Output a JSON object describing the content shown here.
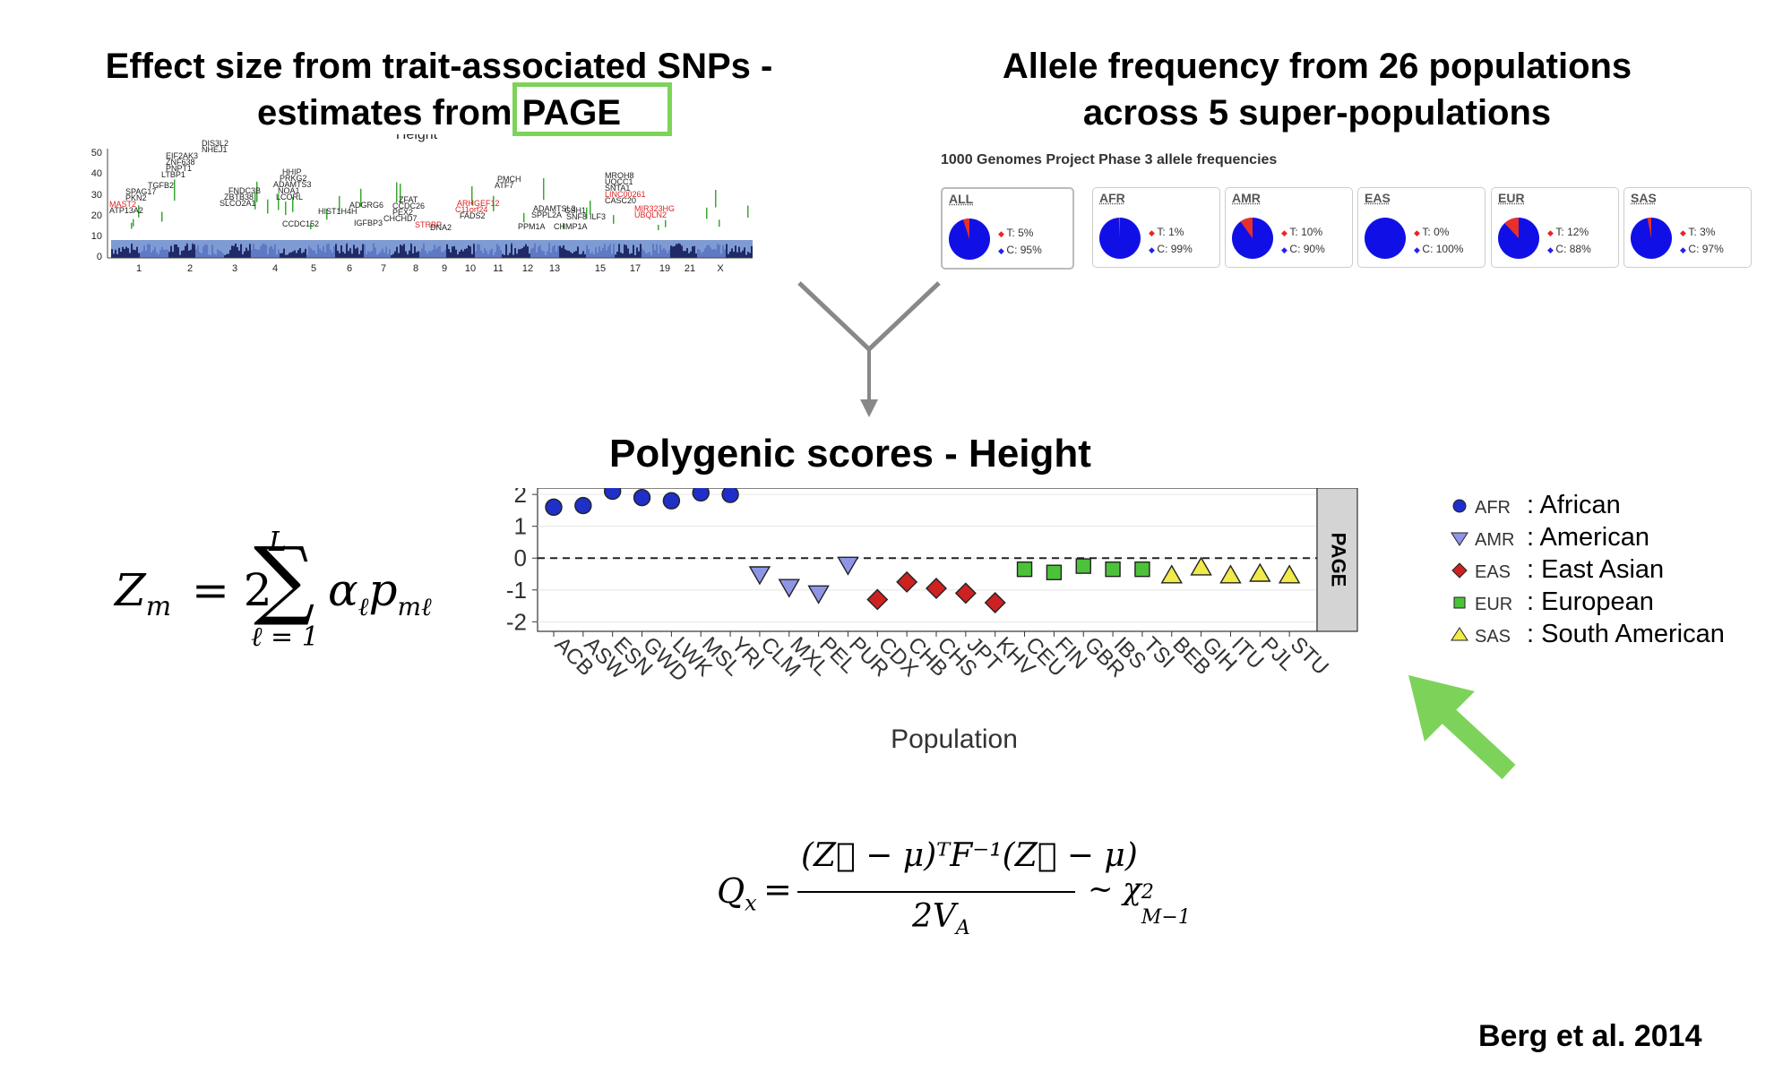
{
  "titles": {
    "left_line1": "Effect size from trait-associated SNPs -",
    "left_line2_prefix": "estimates from ",
    "left_line2_highlight": "PAGE",
    "right_line1": "Allele frequency from 26 populations",
    "right_line2": "across 5 super-populations",
    "center": "Polygenic scores - Height"
  },
  "manhattan": {
    "title": "Height",
    "y_ticks": [
      "50",
      "40",
      "30",
      "20",
      "10",
      "0"
    ],
    "x_ticks": [
      "1",
      "2",
      "3",
      "4",
      "5",
      "6",
      "7",
      "8",
      "9",
      "10",
      "11",
      "12",
      "13",
      "15",
      "17",
      "19",
      "21",
      "X"
    ],
    "genes": [
      "DIS3L2",
      "NHEJ1",
      "EIF2AK3",
      "ZNF638",
      "PNPT1",
      "LTBP1",
      "TGFB2",
      "SPAG17",
      "PKN2",
      "MAST2",
      "ATP13A2",
      "FNDC3B",
      "ZBTB38",
      "SLCO2A1",
      "HHIP",
      "PRKG2",
      "ADAMTS3",
      "NOA1",
      "LCORL",
      "CCDC152",
      "HIST1H4H",
      "ADGRG6",
      "IGFBP3",
      "ZFAT",
      "CCDC26",
      "PEX2",
      "CHCHD7",
      "STRBP",
      "DNA2",
      "ARHGEF12",
      "C11orf24",
      "FADS2",
      "PMCH",
      "ATF7",
      "ADAMTSL3",
      "SPPL2A",
      "PPM1A",
      "CSH1",
      "SNF8",
      "CHMP1A",
      "ILF3",
      "MROH8",
      "UQCC1",
      "SNTA1",
      "LINC00261",
      "CASC20",
      "MIR323HG",
      "UBQLN2"
    ],
    "red_genes": [
      "MAST2",
      "STRBP",
      "ARHGEF12",
      "C11orf24",
      "LINC00261",
      "MIR323HG",
      "UBQLN2"
    ]
  },
  "allele_freq": {
    "heading": "1000 Genomes Project Phase 3 allele frequencies",
    "panels": [
      {
        "label": "ALL",
        "t": "T: 5%",
        "c": "C: 95%",
        "t_frac": 0.05
      },
      {
        "label": "AFR",
        "t": "T: 1%",
        "c": "C: 99%",
        "t_frac": 0.01
      },
      {
        "label": "AMR",
        "t": "T: 10%",
        "c": "C: 90%",
        "t_frac": 0.1
      },
      {
        "label": "EAS",
        "t": "T: 0%",
        "c": "C: 100%",
        "t_frac": 0.0
      },
      {
        "label": "EUR",
        "t": "T: 12%",
        "c": "C: 88%",
        "t_frac": 0.12
      },
      {
        "label": "SAS",
        "t": "T: 3%",
        "c": "C: 97%",
        "t_frac": 0.03
      }
    ],
    "colors": {
      "t": "#e8302a",
      "c": "#1010e6"
    }
  },
  "formula_zm": {
    "lhs": "Z",
    "lhs_sub": "m",
    "eq": "= 2",
    "upper": "L",
    "lower": "ℓ = 1",
    "alpha": "α",
    "alpha_sub": "ℓ",
    "p": "p",
    "p_sub": "mℓ"
  },
  "formula_qx": {
    "lhs": "Q",
    "lhs_sub": "x",
    "numerator": "(Z⃗ − μ)ᵀF⁻¹(Z⃗ − μ)",
    "denominator": "2V",
    "denominator_sub": "A",
    "rhs": "~ χ",
    "rhs_sup": "2",
    "rhs_sub": "M−1"
  },
  "legend": [
    {
      "code": "AFR",
      "name": ": African",
      "shape": "circle",
      "color": "#1f2fc8"
    },
    {
      "code": "AMR",
      "name": ": American",
      "shape": "triangle-down",
      "color": "#8f95e6"
    },
    {
      "code": "EAS",
      "name": ": East Asian",
      "shape": "diamond",
      "color": "#cc2222"
    },
    {
      "code": "EUR",
      "name": ": European",
      "shape": "square",
      "color": "#4cc23a"
    },
    {
      "code": "SAS",
      "name": ": South American",
      "shape": "triangle-up",
      "color": "#f0ea4a"
    }
  ],
  "chart_data": {
    "type": "scatter",
    "xlabel": "Population",
    "ylabel": "",
    "facet_label": "PAGE",
    "ylim": [
      -2.3,
      2.2
    ],
    "y_ticks": [
      2,
      1,
      0,
      -1,
      -2
    ],
    "reference_line": 0,
    "categories": [
      "ACB",
      "ASW",
      "ESN",
      "GWD",
      "LWK",
      "MSL",
      "YRI",
      "CLM",
      "MXL",
      "PEL",
      "PUR",
      "CDX",
      "CHB",
      "CHS",
      "JPT",
      "KHV",
      "CEU",
      "FIN",
      "GBR",
      "IBS",
      "TSI",
      "BEB",
      "GIH",
      "ITU",
      "PJL",
      "STU"
    ],
    "series": [
      {
        "group": "AFR",
        "categories": [
          "ACB",
          "ASW",
          "ESN",
          "GWD",
          "LWK",
          "MSL",
          "YRI"
        ],
        "values": [
          1.6,
          1.65,
          2.1,
          1.9,
          1.8,
          2.05,
          2.0
        ]
      },
      {
        "group": "AMR",
        "categories": [
          "CLM",
          "MXL",
          "PEL",
          "PUR"
        ],
        "values": [
          -0.5,
          -0.9,
          -1.1,
          -0.2
        ]
      },
      {
        "group": "EAS",
        "categories": [
          "CDX",
          "CHB",
          "CHS",
          "JPT",
          "KHV"
        ],
        "values": [
          -1.3,
          -0.75,
          -0.95,
          -1.1,
          -1.4
        ]
      },
      {
        "group": "EUR",
        "categories": [
          "CEU",
          "FIN",
          "GBR",
          "IBS",
          "TSI"
        ],
        "values": [
          -0.35,
          -0.45,
          -0.25,
          -0.35,
          -0.35
        ]
      },
      {
        "group": "SAS",
        "categories": [
          "BEB",
          "GIH",
          "ITU",
          "PJL",
          "STU"
        ],
        "values": [
          -0.55,
          -0.3,
          -0.55,
          -0.5,
          -0.55
        ]
      }
    ]
  },
  "credit": "Berg et al. 2014",
  "colors": {
    "highlight_box": "#7dd35a",
    "arrow_green": "#7dd35a",
    "arrow_gray": "#888888"
  }
}
